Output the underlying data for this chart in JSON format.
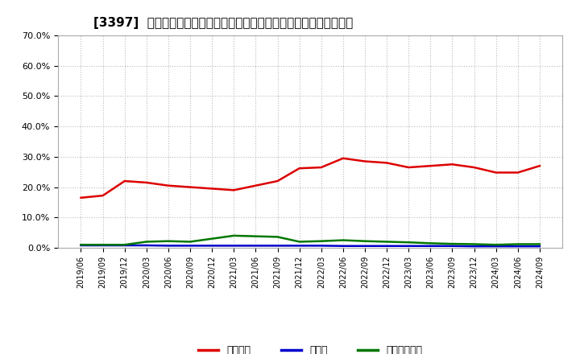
{
  "title": "[3397]  自己資本、のれん、繰延税金資産の総資産に対する比率の推移",
  "title_fontsize": 11,
  "background_color": "#ffffff",
  "plot_bg_color": "#ffffff",
  "grid_color": "#bbbbbb",
  "ylim": [
    0.0,
    0.7
  ],
  "yticks": [
    0.0,
    0.1,
    0.2,
    0.3,
    0.4,
    0.5,
    0.6,
    0.7
  ],
  "ytick_labels": [
    "0.0%",
    "10.0%",
    "20.0%",
    "30.0%",
    "40.0%",
    "50.0%",
    "60.0%",
    "70.0%"
  ],
  "x_labels": [
    "2019/06",
    "2019/09",
    "2019/12",
    "2020/03",
    "2020/06",
    "2020/09",
    "2020/12",
    "2021/03",
    "2021/06",
    "2021/09",
    "2021/12",
    "2022/03",
    "2022/06",
    "2022/09",
    "2022/12",
    "2023/03",
    "2023/06",
    "2023/09",
    "2023/12",
    "2024/03",
    "2024/06",
    "2024/09"
  ],
  "series": {
    "jiko_shihon": {
      "label": "自己資本",
      "color": "#dd0000",
      "values": [
        0.165,
        0.172,
        0.22,
        0.215,
        0.205,
        0.2,
        0.195,
        0.19,
        0.205,
        0.22,
        0.262,
        0.265,
        0.295,
        0.285,
        0.28,
        0.265,
        0.27,
        0.275,
        0.265,
        0.248,
        0.248,
        0.27
      ]
    },
    "noren": {
      "label": "のれん",
      "color": "#0000cc",
      "values": [
        0.008,
        0.008,
        0.008,
        0.008,
        0.007,
        0.007,
        0.007,
        0.007,
        0.007,
        0.007,
        0.007,
        0.007,
        0.006,
        0.006,
        0.006,
        0.006,
        0.006,
        0.006,
        0.005,
        0.005,
        0.005,
        0.005
      ]
    },
    "kuenri": {
      "label": "繰延税金資産",
      "color": "#007700",
      "values": [
        0.01,
        0.01,
        0.01,
        0.02,
        0.022,
        0.02,
        0.03,
        0.04,
        0.038,
        0.036,
        0.02,
        0.022,
        0.025,
        0.022,
        0.02,
        0.018,
        0.015,
        0.013,
        0.012,
        0.01,
        0.012,
        0.012
      ]
    }
  },
  "legend_labels": [
    "自己資本",
    "のれん",
    "繰延税金資産"
  ],
  "legend_colors": [
    "#dd0000",
    "#0000cc",
    "#007700"
  ]
}
